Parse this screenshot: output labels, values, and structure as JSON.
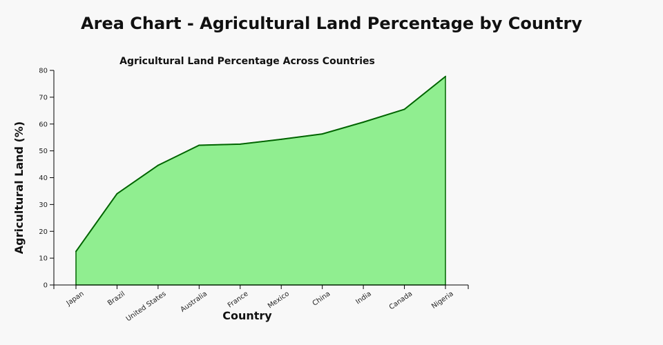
{
  "page_title": "Area Chart - Agricultural Land Percentage by Country",
  "chart_data": {
    "type": "area",
    "title": "Agricultural Land Percentage Across Countries",
    "xlabel": "Country",
    "ylabel": "Agricultural Land (%)",
    "categories": [
      "Japan",
      "Brazil",
      "United States",
      "Australia",
      "France",
      "Mexico",
      "China",
      "India",
      "Canada",
      "Nigeria"
    ],
    "values": [
      12.5,
      34,
      44.6,
      52.1,
      52.5,
      54.3,
      56.3,
      60.7,
      65.5,
      77.7
    ],
    "ylim": [
      0,
      80
    ],
    "yticks": [
      0,
      10,
      20,
      30,
      40,
      50,
      60,
      70,
      80
    ],
    "grid": false,
    "legend": "none",
    "colors": {
      "fill": "#90ee90",
      "line": "#006400"
    }
  }
}
